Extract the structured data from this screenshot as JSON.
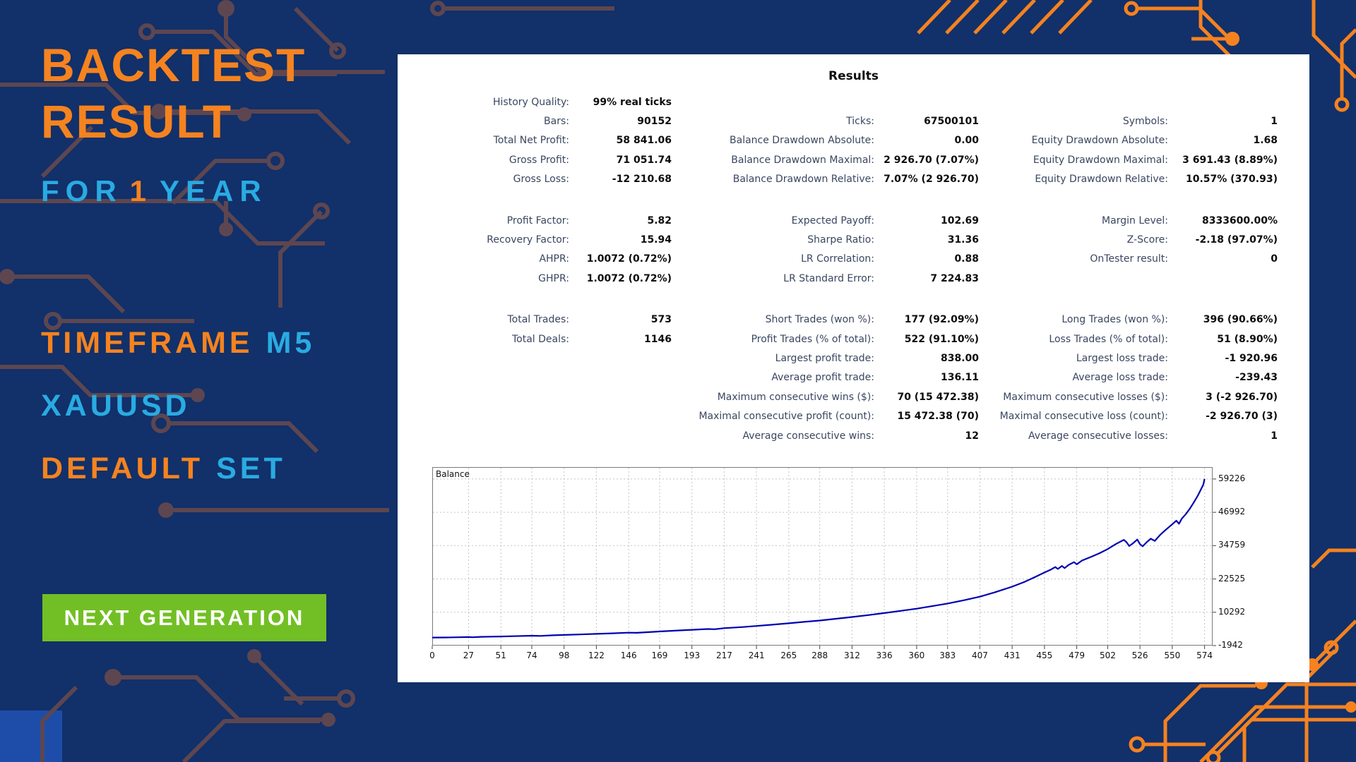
{
  "colors": {
    "background": "#123069",
    "accent_orange": "#f5831f",
    "accent_blue": "#29abe2",
    "button_green": "#72bf25",
    "panel_white": "#ffffff",
    "balance_line": "#0000b2",
    "circuit_muted": "#5d4650"
  },
  "left_panel": {
    "title_line1": "BACKTEST",
    "title_line2": "RESULT",
    "line_for": {
      "w1": "FOR",
      "num": "1",
      "w2": "YEAR"
    },
    "line_tf": {
      "w1": "TIMEFRAME",
      "w2": "M5"
    },
    "symbol": "XAUUSD",
    "line_set": {
      "w1": "DEFAULT",
      "w2": "SET"
    },
    "button": "NEXT GENERATION"
  },
  "results": {
    "title": "Results",
    "blocks": [
      [
        [
          {
            "l": "History Quality:",
            "v": "99% real ticks"
          },
          null,
          null
        ],
        [
          {
            "l": "Bars:",
            "v": "90152"
          },
          {
            "l": "Ticks:",
            "v": "67500101"
          },
          {
            "l": "Symbols:",
            "v": "1"
          }
        ],
        [
          {
            "l": "Total Net Profit:",
            "v": "58 841.06"
          },
          {
            "l": "Balance Drawdown Absolute:",
            "v": "0.00"
          },
          {
            "l": "Equity Drawdown Absolute:",
            "v": "1.68"
          }
        ],
        [
          {
            "l": "Gross Profit:",
            "v": "71 051.74"
          },
          {
            "l": "Balance Drawdown Maximal:",
            "v": "2 926.70 (7.07%)"
          },
          {
            "l": "Equity Drawdown Maximal:",
            "v": "3 691.43 (8.89%)"
          }
        ],
        [
          {
            "l": "Gross Loss:",
            "v": "-12 210.68"
          },
          {
            "l": "Balance Drawdown Relative:",
            "v": "7.07% (2 926.70)"
          },
          {
            "l": "Equity Drawdown Relative:",
            "v": "10.57% (370.93)"
          }
        ]
      ],
      [
        [
          {
            "l": "Profit Factor:",
            "v": "5.82"
          },
          {
            "l": "Expected Payoff:",
            "v": "102.69"
          },
          {
            "l": "Margin Level:",
            "v": "8333600.00%"
          }
        ],
        [
          {
            "l": "Recovery Factor:",
            "v": "15.94"
          },
          {
            "l": "Sharpe Ratio:",
            "v": "31.36"
          },
          {
            "l": "Z-Score:",
            "v": "-2.18 (97.07%)"
          }
        ],
        [
          {
            "l": "AHPR:",
            "v": "1.0072 (0.72%)"
          },
          {
            "l": "LR Correlation:",
            "v": "0.88"
          },
          {
            "l": "OnTester result:",
            "v": "0"
          }
        ],
        [
          {
            "l": "GHPR:",
            "v": "1.0072 (0.72%)"
          },
          {
            "l": "LR Standard Error:",
            "v": "7 224.83"
          },
          null
        ]
      ],
      [
        [
          {
            "l": "Total Trades:",
            "v": "573"
          },
          {
            "l": "Short Trades (won %):",
            "v": "177 (92.09%)"
          },
          {
            "l": "Long Trades (won %):",
            "v": "396 (90.66%)"
          }
        ],
        [
          {
            "l": "Total Deals:",
            "v": "1146"
          },
          {
            "l": "Profit Trades (% of total):",
            "v": "522 (91.10%)"
          },
          {
            "l": "Loss Trades (% of total):",
            "v": "51 (8.90%)"
          }
        ],
        [
          null,
          {
            "l": "Largest profit trade:",
            "v": "838.00"
          },
          {
            "l": "Largest loss trade:",
            "v": "-1 920.96"
          }
        ],
        [
          null,
          {
            "l": "Average profit trade:",
            "v": "136.11"
          },
          {
            "l": "Average loss trade:",
            "v": "-239.43"
          }
        ],
        [
          null,
          {
            "l": "Maximum consecutive wins ($):",
            "v": "70 (15 472.38)"
          },
          {
            "l": "Maximum consecutive losses ($):",
            "v": "3 (-2 926.70)"
          }
        ],
        [
          null,
          {
            "l": "Maximal consecutive profit (count):",
            "v": "15 472.38 (70)"
          },
          {
            "l": "Maximal consecutive loss (count):",
            "v": "-2 926.70 (3)"
          }
        ],
        [
          null,
          {
            "l": "Average consecutive wins:",
            "v": "12"
          },
          {
            "l": "Average consecutive losses:",
            "v": "1"
          }
        ]
      ]
    ]
  },
  "chart_data": {
    "type": "line",
    "title": "Balance",
    "xlabel": "",
    "ylabel": "",
    "grid": "dashed",
    "x_range": [
      0,
      580
    ],
    "y_range": [
      -1942,
      63600
    ],
    "x_ticks": [
      0,
      27,
      51,
      74,
      98,
      122,
      146,
      169,
      193,
      217,
      241,
      265,
      288,
      312,
      336,
      360,
      383,
      407,
      431,
      455,
      479,
      502,
      526,
      550,
      574
    ],
    "y_ticks": [
      59226,
      46992,
      34759,
      22525,
      10292,
      -1942
    ],
    "series": [
      {
        "name": "Balance",
        "color": "#0000b2",
        "points": [
          [
            0,
            1000
          ],
          [
            10,
            1050
          ],
          [
            20,
            1120
          ],
          [
            27,
            1180
          ],
          [
            30,
            1120
          ],
          [
            36,
            1260
          ],
          [
            45,
            1340
          ],
          [
            51,
            1400
          ],
          [
            60,
            1500
          ],
          [
            74,
            1680
          ],
          [
            80,
            1620
          ],
          [
            90,
            1830
          ],
          [
            98,
            1960
          ],
          [
            110,
            2150
          ],
          [
            122,
            2350
          ],
          [
            134,
            2560
          ],
          [
            146,
            2800
          ],
          [
            152,
            2740
          ],
          [
            160,
            2980
          ],
          [
            169,
            3230
          ],
          [
            180,
            3520
          ],
          [
            193,
            3860
          ],
          [
            205,
            4150
          ],
          [
            210,
            4080
          ],
          [
            217,
            4450
          ],
          [
            230,
            4850
          ],
          [
            241,
            5250
          ],
          [
            252,
            5700
          ],
          [
            265,
            6250
          ],
          [
            275,
            6700
          ],
          [
            288,
            7250
          ],
          [
            300,
            7900
          ],
          [
            312,
            8550
          ],
          [
            324,
            9250
          ],
          [
            336,
            10000
          ],
          [
            348,
            10800
          ],
          [
            360,
            11600
          ],
          [
            370,
            12400
          ],
          [
            383,
            13500
          ],
          [
            395,
            14700
          ],
          [
            407,
            16000
          ],
          [
            418,
            17600
          ],
          [
            431,
            19700
          ],
          [
            440,
            21400
          ],
          [
            448,
            23200
          ],
          [
            455,
            24900
          ],
          [
            460,
            26000
          ],
          [
            463,
            26900
          ],
          [
            465,
            26200
          ],
          [
            468,
            27300
          ],
          [
            470,
            26500
          ],
          [
            473,
            27700
          ],
          [
            477,
            28700
          ],
          [
            479,
            27900
          ],
          [
            483,
            29300
          ],
          [
            490,
            30700
          ],
          [
            496,
            32000
          ],
          [
            502,
            33500
          ],
          [
            508,
            35300
          ],
          [
            514,
            36900
          ],
          [
            516,
            36000
          ],
          [
            518,
            34600
          ],
          [
            521,
            35700
          ],
          [
            524,
            37000
          ],
          [
            526,
            35300
          ],
          [
            528,
            34500
          ],
          [
            531,
            36000
          ],
          [
            534,
            37300
          ],
          [
            537,
            36500
          ],
          [
            541,
            38700
          ],
          [
            545,
            40500
          ],
          [
            550,
            42600
          ],
          [
            553,
            43900
          ],
          [
            555,
            42800
          ],
          [
            557,
            44600
          ],
          [
            560,
            46300
          ],
          [
            563,
            48300
          ],
          [
            566,
            50600
          ],
          [
            569,
            53100
          ],
          [
            571,
            55100
          ],
          [
            573,
            57100
          ],
          [
            574,
            59226
          ]
        ]
      }
    ]
  }
}
